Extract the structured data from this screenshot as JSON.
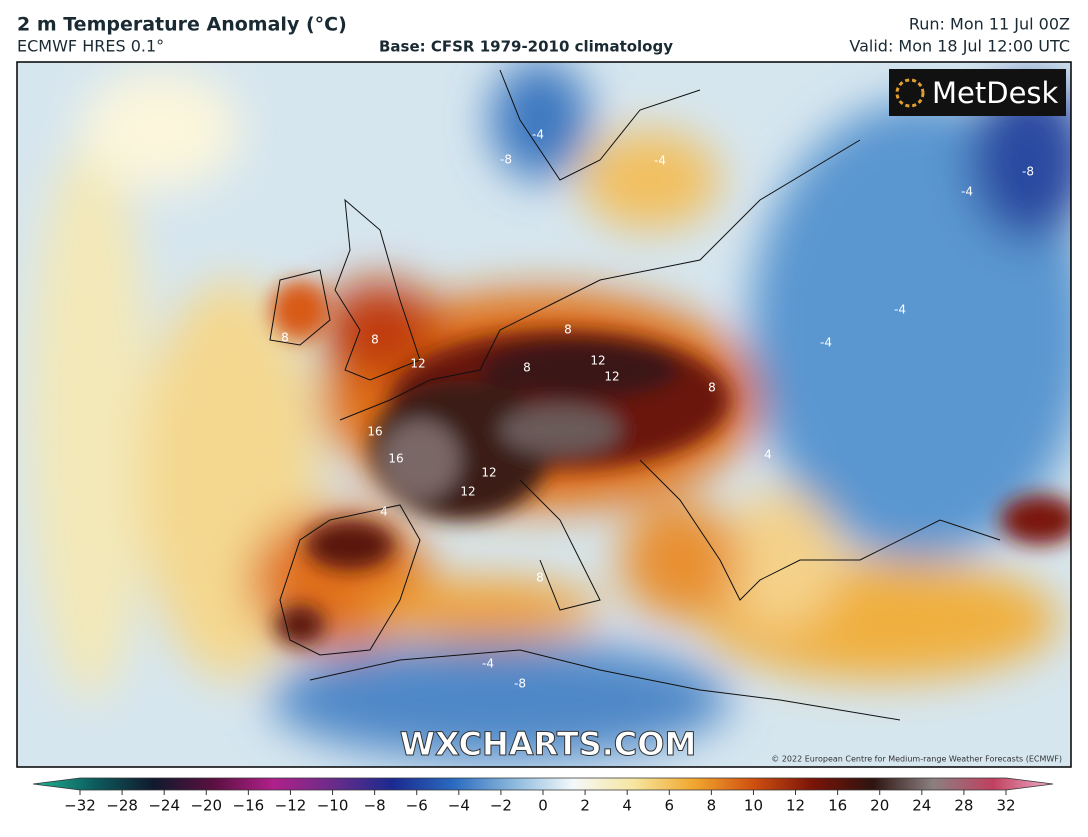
{
  "header": {
    "title": "2 m Temperature Anomaly (°C)",
    "model": "ECMWF HRES 0.1°",
    "base": "Base: CFSR 1979-2010 climatology",
    "run": "Run: Mon 11 Jul 00Z",
    "valid": "Valid: Mon 18 Jul 12:00 UTC"
  },
  "map": {
    "logo": "MetDesk",
    "watermark": "WXCHARTS.COM",
    "credit": "© 2022 European Centre for Medium-range Weather Forecasts (ECMWF)",
    "contour_labels": [
      "8",
      "12",
      "12",
      "16",
      "16",
      "12",
      "12",
      "8",
      "8",
      "12",
      "-4",
      "-4",
      "-8",
      "-4",
      "-8",
      "-4",
      "-4",
      "4",
      "4",
      "8",
      "-4",
      "-8",
      "8",
      "8"
    ]
  },
  "colorbar": {
    "colors": [
      "#1fb592",
      "#0d5e5e",
      "#101a2e",
      "#5a1040",
      "#b0208a",
      "#6a2c8a",
      "#1a2a90",
      "#2a6ac0",
      "#8ab8dc",
      "#f4f8fa",
      "#f7e6a0",
      "#f0a830",
      "#d05010",
      "#7a1408",
      "#2e1410",
      "#8a8080",
      "#c04060",
      "#f0b0c8"
    ],
    "ticks": [
      {
        "value": -32,
        "label": "−32"
      },
      {
        "value": -28,
        "label": "−28"
      },
      {
        "value": -24,
        "label": "−24"
      },
      {
        "value": -20,
        "label": "−20"
      },
      {
        "value": -16,
        "label": "−16"
      },
      {
        "value": -12,
        "label": "−12"
      },
      {
        "value": -10,
        "label": "−10"
      },
      {
        "value": -8,
        "label": "−8"
      },
      {
        "value": -6,
        "label": "−6"
      },
      {
        "value": -4,
        "label": "−4"
      },
      {
        "value": -2,
        "label": "−2"
      },
      0,
      2,
      4,
      6,
      8,
      10,
      12,
      16,
      20,
      24,
      28,
      32
    ]
  }
}
